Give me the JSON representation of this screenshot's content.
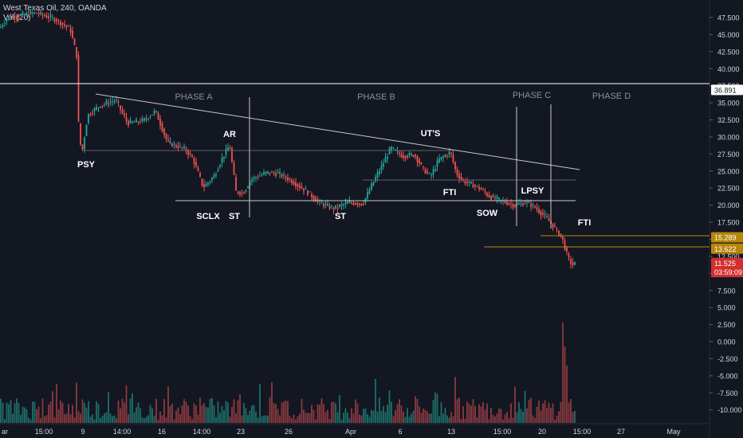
{
  "header": {
    "symbol": "West Texas Oil, 240, OANDA",
    "volume_label": "Vol (20)"
  },
  "colors": {
    "background": "#131722",
    "up": "#26a69a",
    "down": "#ef5350",
    "up_vol": "#1e6f6a",
    "down_vol": "#8c3a3f",
    "text": "#d1d4dc",
    "phase_text": "#8a8f9c",
    "line": "#c8c8c8",
    "amber": "#b8860b",
    "red_badge": "#d32f2f"
  },
  "chart_data": {
    "type": "candlestick",
    "title": "West Texas Oil, 240, OANDA",
    "y_axis": {
      "ticks": [
        "47.500",
        "45.000",
        "42.500",
        "40.000",
        "37.500",
        "35.000",
        "32.500",
        "30.000",
        "27.500",
        "25.000",
        "22.500",
        "20.000",
        "17.500",
        "15.000",
        "12.500",
        "10.000",
        "7.500",
        "5.000",
        "2.500",
        "0.000",
        "-2.500",
        "-5.000",
        "-7.500",
        "-10.000"
      ],
      "range": [
        -11.2,
        48.9
      ]
    },
    "x_axis": {
      "ticks": [
        "ar",
        "15:00",
        "9",
        "14:00",
        "16",
        "14:00",
        "23",
        "26",
        "Apr",
        "6",
        "13",
        "15:00",
        "20",
        "15:00",
        "27",
        "May"
      ]
    },
    "price_badges": [
      {
        "label": "36.891",
        "value": 36.891,
        "style": "white"
      },
      {
        "label": "15.289",
        "value": 15.289,
        "style": "amber"
      },
      {
        "label": "13.622",
        "value": 13.622,
        "style": "amber"
      },
      {
        "label": "11.525",
        "value": 11.525,
        "style": "red"
      },
      {
        "label": "03:59:09",
        "value": 10.2,
        "style": "red"
      }
    ],
    "phases": [
      "PHASE A",
      "PHASE B",
      "PHASE C",
      "PHASE D"
    ],
    "annotations": [
      "PSY",
      "AR",
      "SCLX",
      "ST",
      "ST",
      "UT'S",
      "FTI",
      "SOW",
      "LPSY",
      "FTI"
    ],
    "price_path": [
      [
        0,
        46.0
      ],
      [
        10,
        47.6
      ],
      [
        25,
        47.8
      ],
      [
        45,
        48.2
      ],
      [
        70,
        47.2
      ],
      [
        88,
        45.8
      ],
      [
        96,
        42.0
      ],
      [
        99,
        30.0
      ],
      [
        103,
        27.8
      ],
      [
        110,
        33.2
      ],
      [
        125,
        34.6
      ],
      [
        145,
        35.4
      ],
      [
        160,
        32.0
      ],
      [
        180,
        32.4
      ],
      [
        195,
        33.8
      ],
      [
        210,
        29.2
      ],
      [
        232,
        28.2
      ],
      [
        242,
        26.8
      ],
      [
        255,
        22.6
      ],
      [
        268,
        24.2
      ],
      [
        280,
        27.2
      ],
      [
        288,
        28.8
      ],
      [
        296,
        22.0
      ],
      [
        305,
        21.8
      ],
      [
        315,
        23.8
      ],
      [
        335,
        24.8
      ],
      [
        350,
        24.6
      ],
      [
        365,
        23.6
      ],
      [
        385,
        22.0
      ],
      [
        400,
        20.4
      ],
      [
        418,
        19.5
      ],
      [
        438,
        20.4
      ],
      [
        455,
        20.2
      ],
      [
        470,
        23.8
      ],
      [
        480,
        26.0
      ],
      [
        490,
        28.4
      ],
      [
        505,
        27.2
      ],
      [
        520,
        27.4
      ],
      [
        530,
        25.4
      ],
      [
        540,
        24.2
      ],
      [
        550,
        26.6
      ],
      [
        565,
        27.8
      ],
      [
        572,
        24.8
      ],
      [
        580,
        23.6
      ],
      [
        600,
        22.6
      ],
      [
        615,
        21.2
      ],
      [
        630,
        20.6
      ],
      [
        645,
        20.0
      ],
      [
        660,
        20.4
      ],
      [
        670,
        19.8
      ],
      [
        683,
        18.4
      ],
      [
        695,
        16.8
      ],
      [
        705,
        15.2
      ],
      [
        712,
        12.4
      ],
      [
        718,
        11.2
      ],
      [
        722,
        11.5
      ]
    ],
    "volume_spikes": [
      [
        97,
        4.2
      ],
      [
        300,
        3.0
      ],
      [
        472,
        4.6
      ],
      [
        488,
        3.4
      ],
      [
        545,
        3.2
      ],
      [
        570,
        4.8
      ],
      [
        705,
        10.5
      ],
      [
        708,
        8.0
      ],
      [
        711,
        6.0
      ],
      [
        717,
        2.5
      ]
    ]
  }
}
